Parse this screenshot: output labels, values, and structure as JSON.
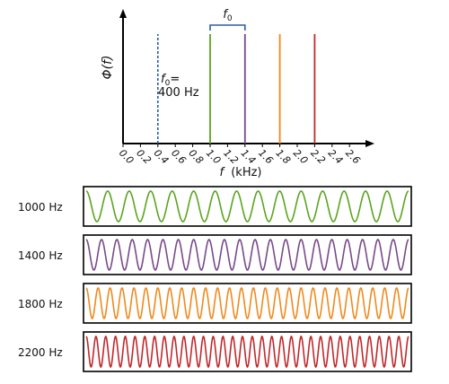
{
  "spectrum": {
    "y_label": "Φ(f)",
    "x_label_var": "f",
    "x_label_unit": "(kHz)",
    "x_ticks": [
      "0.0",
      "0.2",
      "0.4",
      "0.6",
      "0.8",
      "1.0",
      "1.2",
      "1.4",
      "1.6",
      "1.8",
      "2.0",
      "2.2",
      "2.4",
      "2.6"
    ],
    "x_range_khz": [
      0.0,
      2.6
    ],
    "components": [
      {
        "freq_khz": 1.0,
        "color": "#5aa51e"
      },
      {
        "freq_khz": 1.4,
        "color": "#7a4a8a"
      },
      {
        "freq_khz": 1.8,
        "color": "#f08a1c"
      },
      {
        "freq_khz": 2.2,
        "color": "#c0282b"
      }
    ],
    "fundamental": {
      "freq_khz": 0.4,
      "color": "#2a5fa8",
      "label_f": "f",
      "label_sub": "0",
      "label_eq": "=",
      "label_value": "400 Hz"
    },
    "bracket": {
      "from_khz": 1.0,
      "to_khz": 1.4,
      "label_f": "f",
      "label_sub": "0",
      "color": "#2a5fa8"
    }
  },
  "waveforms": [
    {
      "label": "1000 Hz",
      "freq_hz": 1000,
      "color": "#5aa51e"
    },
    {
      "label": "1400 Hz",
      "freq_hz": 1400,
      "color": "#7a4a8a"
    },
    {
      "label": "1800 Hz",
      "freq_hz": 1800,
      "color": "#f08a1c"
    },
    {
      "label": "2200 Hz",
      "freq_hz": 2200,
      "color": "#c0282b"
    }
  ]
}
